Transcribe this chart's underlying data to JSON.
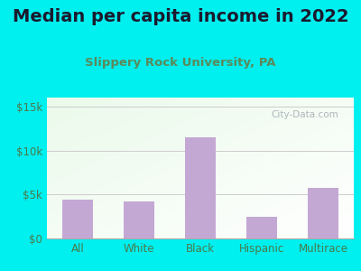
{
  "title": "Median per capita income in 2022",
  "subtitle": "Slippery Rock University, PA",
  "categories": [
    "All",
    "White",
    "Black",
    "Hispanic",
    "Multirace"
  ],
  "values": [
    4400,
    4200,
    11500,
    2500,
    5700
  ],
  "bar_color": "#C4A8D4",
  "title_color": "#1a1a2e",
  "subtitle_color": "#5a8a5a",
  "tick_color": "#4a7a4a",
  "background_outer": "#00EFEF",
  "ylim": [
    0,
    16000
  ],
  "yticks": [
    0,
    5000,
    10000,
    15000
  ],
  "ytick_labels": [
    "$0",
    "$5k",
    "$10k",
    "$15k"
  ],
  "watermark": "City-Data.com",
  "title_fontsize": 14,
  "subtitle_fontsize": 9.5,
  "tick_fontsize": 8.5
}
